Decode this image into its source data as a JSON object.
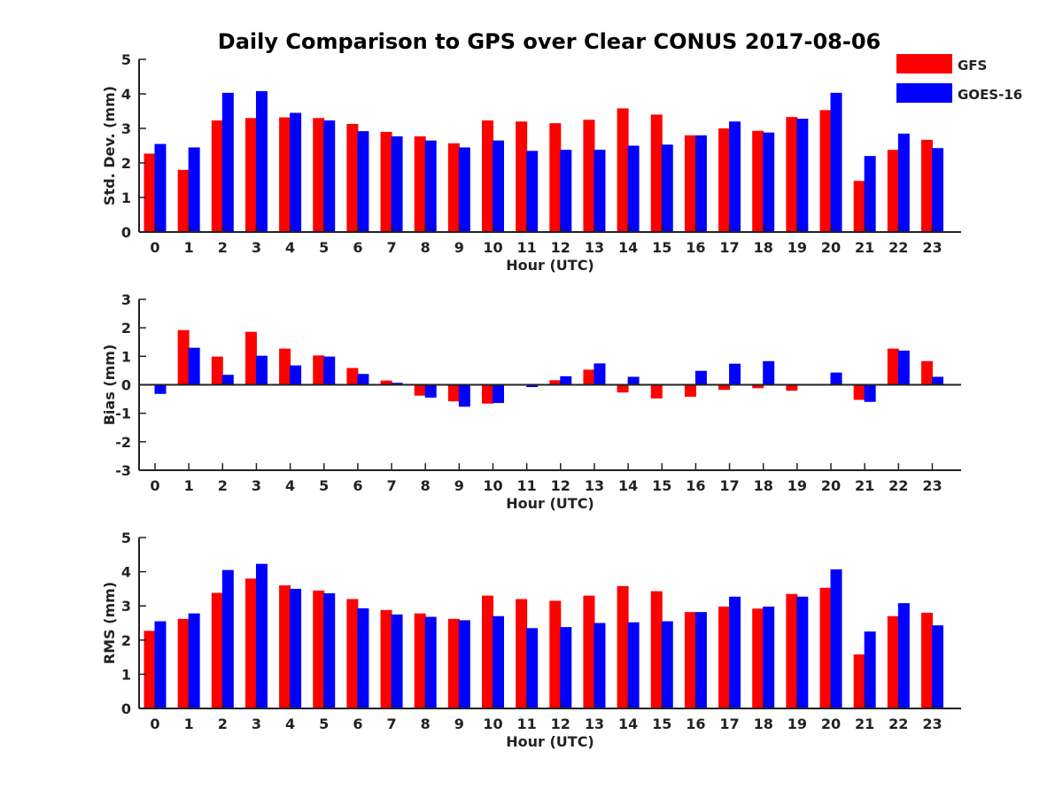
{
  "title": "Daily Comparison to GPS over Clear CONUS 2017-08-06",
  "colors": {
    "GFS": "#ff0000",
    "GOES-16": "#0000ff",
    "axis": "#222222"
  },
  "legend": {
    "position": "top-right",
    "entries": [
      "GFS",
      "GOES-16"
    ]
  },
  "chart_data": [
    {
      "type": "bar",
      "ylabel": "Std. Dev. (mm)",
      "xlabel": "Hour (UTC)",
      "ylim": [
        0,
        5
      ],
      "yticks": [
        0,
        1,
        2,
        3,
        4,
        5
      ],
      "categories": [
        "0",
        "1",
        "2",
        "3",
        "4",
        "5",
        "6",
        "7",
        "8",
        "9",
        "10",
        "11",
        "12",
        "13",
        "14",
        "15",
        "16",
        "17",
        "18",
        "19",
        "20",
        "21",
        "22",
        "23"
      ],
      "series": [
        {
          "name": "GFS",
          "values": [
            2.27,
            1.8,
            3.23,
            3.3,
            3.32,
            3.3,
            3.13,
            2.9,
            2.77,
            2.57,
            3.23,
            3.2,
            3.15,
            3.25,
            3.58,
            3.4,
            2.8,
            3.0,
            2.93,
            3.33,
            3.53,
            1.48,
            2.38,
            2.67
          ]
        },
        {
          "name": "GOES-16",
          "values": [
            2.55,
            2.45,
            4.03,
            4.08,
            3.45,
            3.23,
            2.92,
            2.77,
            2.65,
            2.45,
            2.65,
            2.35,
            2.38,
            2.38,
            2.5,
            2.53,
            2.8,
            3.2,
            2.88,
            3.28,
            4.03,
            2.2,
            2.85,
            2.43
          ]
        }
      ]
    },
    {
      "type": "bar",
      "ylabel": "Bias (mm)",
      "xlabel": "Hour (UTC)",
      "ylim": [
        -3,
        3
      ],
      "yticks": [
        -3,
        -2,
        -1,
        0,
        1,
        2,
        3
      ],
      "zero_line": true,
      "categories": [
        "0",
        "1",
        "2",
        "3",
        "4",
        "5",
        "6",
        "7",
        "8",
        "9",
        "10",
        "11",
        "12",
        "13",
        "14",
        "15",
        "16",
        "17",
        "18",
        "19",
        "20",
        "21",
        "22",
        "23"
      ],
      "series": [
        {
          "name": "GFS",
          "values": [
            0.0,
            1.92,
            0.99,
            1.86,
            1.27,
            1.03,
            0.59,
            0.15,
            -0.38,
            -0.58,
            -0.66,
            0.03,
            0.16,
            0.53,
            -0.27,
            -0.48,
            -0.42,
            -0.18,
            -0.12,
            -0.21,
            0.0,
            -0.53,
            1.27,
            0.83
          ]
        },
        {
          "name": "GOES-16",
          "values": [
            -0.32,
            1.3,
            0.35,
            1.02,
            0.68,
            0.99,
            0.38,
            0.07,
            -0.45,
            -0.77,
            -0.64,
            -0.08,
            0.3,
            0.75,
            0.28,
            0.0,
            0.49,
            0.74,
            0.83,
            0.03,
            0.43,
            -0.6,
            1.2,
            0.28
          ]
        }
      ]
    },
    {
      "type": "bar",
      "ylabel": "RMS (mm)",
      "xlabel": "Hour (UTC)",
      "ylim": [
        0,
        5
      ],
      "yticks": [
        0,
        1,
        2,
        3,
        4,
        5
      ],
      "categories": [
        "0",
        "1",
        "2",
        "3",
        "4",
        "5",
        "6",
        "7",
        "8",
        "9",
        "10",
        "11",
        "12",
        "13",
        "14",
        "15",
        "16",
        "17",
        "18",
        "19",
        "20",
        "21",
        "22",
        "23"
      ],
      "series": [
        {
          "name": "GFS",
          "values": [
            2.27,
            2.62,
            3.38,
            3.8,
            3.6,
            3.45,
            3.2,
            2.88,
            2.78,
            2.62,
            3.3,
            3.2,
            3.15,
            3.3,
            3.58,
            3.43,
            2.82,
            2.98,
            2.92,
            3.35,
            3.53,
            1.58,
            2.7,
            2.8
          ]
        },
        {
          "name": "GOES-16",
          "values": [
            2.55,
            2.78,
            4.05,
            4.23,
            3.5,
            3.37,
            2.93,
            2.75,
            2.68,
            2.58,
            2.7,
            2.35,
            2.38,
            2.5,
            2.52,
            2.55,
            2.82,
            3.27,
            2.98,
            3.27,
            4.07,
            2.25,
            3.08,
            2.43
          ]
        }
      ]
    }
  ]
}
